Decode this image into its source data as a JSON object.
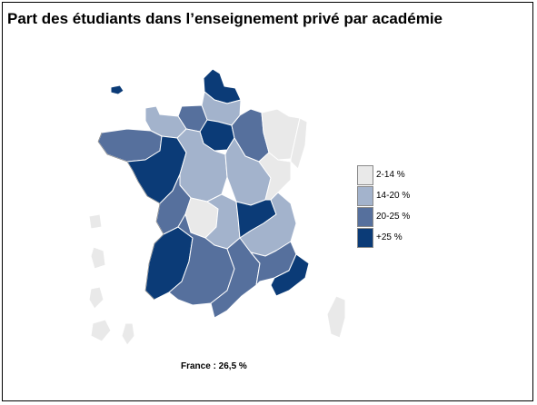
{
  "title": "Part des étudiants dans l’enseignement privé par académie",
  "legend": [
    {
      "label": "2-14 %",
      "color": "#e9e9e9"
    },
    {
      "label": "14-20 %",
      "color": "#a3b3cc"
    },
    {
      "label": "20-25 %",
      "color": "#56709d"
    },
    {
      "label": "+25 %",
      "color": "#0b3b77"
    }
  ],
  "footer": "France : 26,5 %"
}
